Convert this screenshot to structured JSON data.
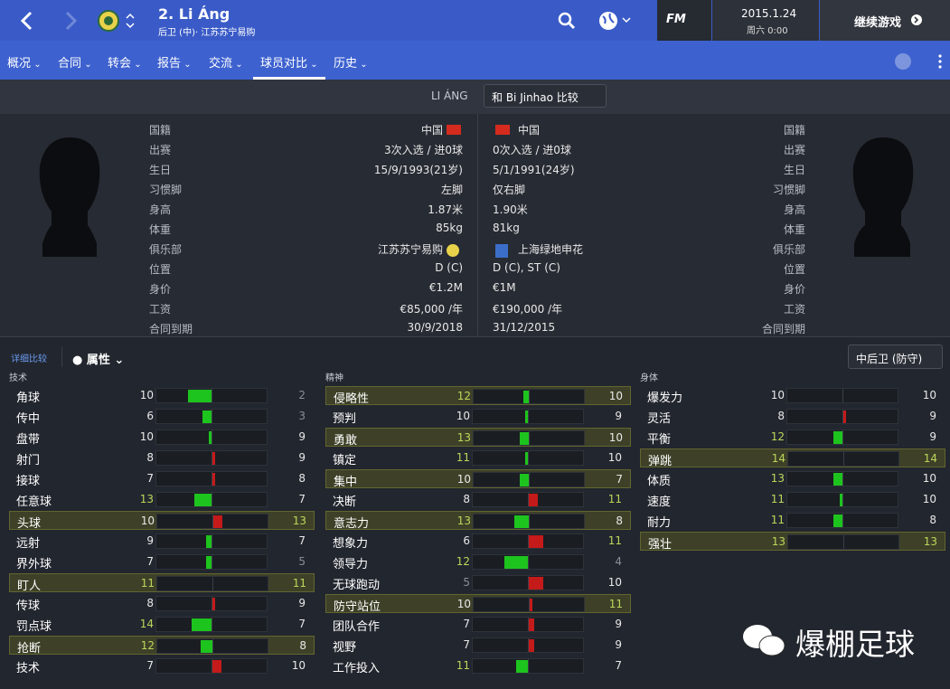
{
  "header": {
    "title": "2. Li Áng",
    "subtitle": "后卫 (中)· 江苏苏宁易购",
    "logo": "FM",
    "date": "2015.1.24",
    "time": "周六 0:00",
    "continue": "继续游戏"
  },
  "tabs": [
    "概况",
    "合同",
    "转会",
    "报告",
    "交流",
    "球员对比",
    "历史"
  ],
  "active_tab": 5,
  "compare": {
    "player": "LI ÁNG",
    "dropdown": "和 Bi Jinhao 比较"
  },
  "info": [
    {
      "label": "国籍",
      "left": "中国",
      "right": "中国"
    },
    {
      "label": "出赛",
      "left": "3次入选 / 进0球",
      "right": "0次入选 / 进0球"
    },
    {
      "label": "生日",
      "left": "15/9/1993(21岁)",
      "right": "5/1/1991(24岁)"
    },
    {
      "label": "习惯脚",
      "left": "左脚",
      "right": "仅右脚"
    },
    {
      "label": "身高",
      "left": "1.87米",
      "right": "1.90米"
    },
    {
      "label": "体重",
      "left": "85kg",
      "right": "81kg"
    },
    {
      "label": "俱乐部",
      "left": "江苏苏宁易购",
      "right": "上海绿地申花"
    },
    {
      "label": "位置",
      "left": "D (C)",
      "right": "D (C), ST (C)"
    },
    {
      "label": "身价",
      "left": "€1.2M",
      "right": "€1M"
    },
    {
      "label": "工资",
      "left": "€85,000 /年",
      "right": "€190,000 /年"
    },
    {
      "label": "合同到期",
      "left": "30/9/2018",
      "right": "31/12/2015"
    }
  ],
  "attributes": {
    "link": "详细比较",
    "view": "属性",
    "role": "中后卫 (防守)",
    "groups": [
      {
        "title": "技术",
        "rows": [
          {
            "name": "角球",
            "a": 10,
            "b": 2,
            "key": false
          },
          {
            "name": "传中",
            "a": 6,
            "b": 3,
            "key": false
          },
          {
            "name": "盘带",
            "a": 10,
            "b": 9,
            "key": false
          },
          {
            "name": "射门",
            "a": 8,
            "b": 9,
            "key": false
          },
          {
            "name": "接球",
            "a": 7,
            "b": 8,
            "key": false
          },
          {
            "name": "任意球",
            "a": 13,
            "b": 7,
            "key": false
          },
          {
            "name": "头球",
            "a": 10,
            "b": 13,
            "key": true
          },
          {
            "name": "远射",
            "a": 9,
            "b": 7,
            "key": false
          },
          {
            "name": "界外球",
            "a": 7,
            "b": 5,
            "key": false
          },
          {
            "name": "盯人",
            "a": 11,
            "b": 11,
            "key": true
          },
          {
            "name": "传球",
            "a": 8,
            "b": 9,
            "key": false
          },
          {
            "name": "罚点球",
            "a": 14,
            "b": 7,
            "key": false
          },
          {
            "name": "抢断",
            "a": 12,
            "b": 8,
            "key": true
          },
          {
            "name": "技术",
            "a": 7,
            "b": 10,
            "key": false
          }
        ]
      },
      {
        "title": "精神",
        "rows": [
          {
            "name": "侵略性",
            "a": 12,
            "b": 10,
            "key": true
          },
          {
            "name": "预判",
            "a": 10,
            "b": 9,
            "key": false
          },
          {
            "name": "勇敢",
            "a": 13,
            "b": 10,
            "key": true
          },
          {
            "name": "镇定",
            "a": 11,
            "b": 10,
            "key": false
          },
          {
            "name": "集中",
            "a": 10,
            "b": 7,
            "key": true
          },
          {
            "name": "决断",
            "a": 8,
            "b": 11,
            "key": false
          },
          {
            "name": "意志力",
            "a": 13,
            "b": 8,
            "key": true
          },
          {
            "name": "想象力",
            "a": 6,
            "b": 11,
            "key": false
          },
          {
            "name": "领导力",
            "a": 12,
            "b": 4,
            "key": false
          },
          {
            "name": "无球跑动",
            "a": 5,
            "b": 10,
            "key": false
          },
          {
            "name": "防守站位",
            "a": 10,
            "b": 11,
            "key": true
          },
          {
            "name": "团队合作",
            "a": 7,
            "b": 9,
            "key": false
          },
          {
            "name": "视野",
            "a": 7,
            "b": 9,
            "key": false
          },
          {
            "name": "工作投入",
            "a": 11,
            "b": 7,
            "key": false
          }
        ]
      },
      {
        "title": "身体",
        "rows": [
          {
            "name": "爆发力",
            "a": 10,
            "b": 10,
            "key": false
          },
          {
            "name": "灵活",
            "a": 8,
            "b": 9,
            "key": false
          },
          {
            "name": "平衡",
            "a": 12,
            "b": 9,
            "key": false
          },
          {
            "name": "弹跳",
            "a": 14,
            "b": 14,
            "key": true
          },
          {
            "name": "体质",
            "a": 13,
            "b": 10,
            "key": false
          },
          {
            "name": "速度",
            "a": 11,
            "b": 10,
            "key": false
          },
          {
            "name": "耐力",
            "a": 11,
            "b": 8,
            "key": false
          },
          {
            "name": "强壮",
            "a": 13,
            "b": 13,
            "key": true
          }
        ]
      }
    ]
  },
  "watermark": "爆棚足球"
}
